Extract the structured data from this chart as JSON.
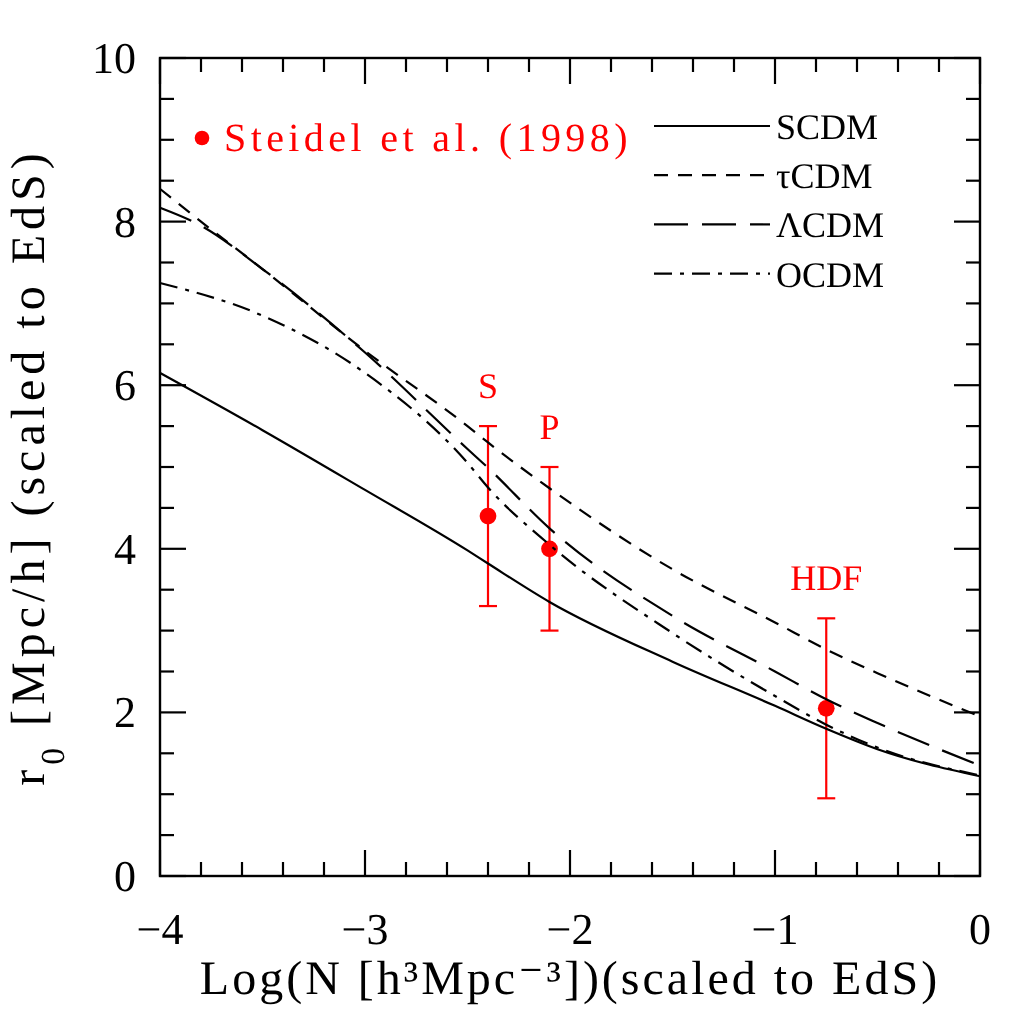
{
  "chart_data": {
    "type": "line",
    "xlabel": "Log(N [h³Mpc⁻³])(scaled to EdS)",
    "ylabel": "r$_{0}$ [Mpc/h] (scaled to EdS)",
    "xlim": [
      -4,
      0
    ],
    "ylim": [
      0,
      10
    ],
    "xticks": [
      -4,
      {
        "value": -3.8,
        "label": null
      },
      {
        "value": -3.6,
        "label": null
      },
      {
        "value": -3.4,
        "label": null
      },
      {
        "value": -3.2,
        "label": null
      },
      -3,
      {
        "value": -2.8,
        "label": null
      },
      {
        "value": -2.6,
        "label": null
      },
      {
        "value": -2.4,
        "label": null
      },
      {
        "value": -2.2,
        "label": null
      },
      -2,
      {
        "value": -1.8,
        "label": null
      },
      {
        "value": -1.6,
        "label": null
      },
      {
        "value": -1.4,
        "label": null
      },
      {
        "value": -1.2,
        "label": null
      },
      -1,
      {
        "value": -0.8,
        "label": null
      },
      {
        "value": -0.6,
        "label": null
      },
      {
        "value": -0.4,
        "label": null
      },
      {
        "value": -0.2,
        "label": null
      },
      0
    ],
    "yticks": [
      0,
      {
        "value": 0.5,
        "label": null
      },
      {
        "value": 1,
        "label": null
      },
      {
        "value": 1.5,
        "label": null
      },
      2,
      {
        "value": 2.5,
        "label": null
      },
      {
        "value": 3,
        "label": null
      },
      {
        "value": 3.5,
        "label": null
      },
      4,
      {
        "value": 4.5,
        "label": null
      },
      {
        "value": 5,
        "label": null
      },
      {
        "value": 5.5,
        "label": null
      },
      6,
      {
        "value": 6.5,
        "label": null
      },
      {
        "value": 7,
        "label": null
      },
      {
        "value": 7.5,
        "label": null
      },
      8,
      {
        "value": 8.5,
        "label": null
      },
      {
        "value": 9,
        "label": null
      },
      {
        "value": 9.5,
        "label": null
      },
      10
    ],
    "legend": "top",
    "series": [
      {
        "name": "Steidel et al. (1998)",
        "type": "scatter",
        "color": "#ff0000",
        "marker": "circle",
        "x": [
          -2.4,
          -2.1,
          -0.75
        ],
        "values": [
          4.4,
          4.0,
          2.05
        ],
        "errors": [
          [
            3.3,
            5.5
          ],
          [
            3.0,
            5.0
          ],
          [
            0.95,
            3.15
          ]
        ]
      },
      {
        "name": "SCDM",
        "color": "#000000",
        "line_style": "solid",
        "x": [
          -4,
          -3.5,
          -3,
          -2.5,
          -2.4,
          -2.1,
          -1.5,
          -1,
          -0.75,
          -0.5,
          0
        ],
        "values": [
          6.15,
          5.45,
          4.72,
          3.98,
          3.82,
          3.35,
          2.62,
          2.08,
          1.8,
          1.55,
          1.22
        ]
      },
      {
        "name": "τCDM",
        "color": "#000000",
        "line_style": "dashed",
        "x": [
          -4,
          -3.8,
          -3.5,
          -3,
          -2.5,
          -2.4,
          -2.1,
          -1.5,
          -1,
          -0.75,
          -0.5,
          0
        ],
        "values": [
          8.4,
          8.0,
          7.42,
          6.42,
          5.5,
          5.3,
          4.74,
          3.75,
          3.1,
          2.77,
          2.48,
          1.95
        ]
      },
      {
        "name": "ΛCDM",
        "color": "#000000",
        "line_style": "longdash",
        "x": [
          -4,
          -3.8,
          -3.5,
          -3,
          -2.5,
          -2.4,
          -2.1,
          -1.5,
          -1,
          -0.75,
          -0.5,
          0
        ],
        "values": [
          8.17,
          7.95,
          7.42,
          6.4,
          5.22,
          4.99,
          4.25,
          3.18,
          2.5,
          2.16,
          1.87,
          1.35
        ]
      },
      {
        "name": "OCDM",
        "color": "#000000",
        "line_style": "dashdot",
        "x": [
          -4,
          -3.5,
          -3,
          -2.5,
          -2.4,
          -2.1,
          -1.5,
          -1,
          -0.75,
          -0.5,
          0
        ],
        "values": [
          7.25,
          6.85,
          6.15,
          5.05,
          4.75,
          4.05,
          2.97,
          2.2,
          1.85,
          1.57,
          1.23
        ]
      }
    ],
    "annotations": [
      "S",
      "P",
      "HDF"
    ]
  }
}
